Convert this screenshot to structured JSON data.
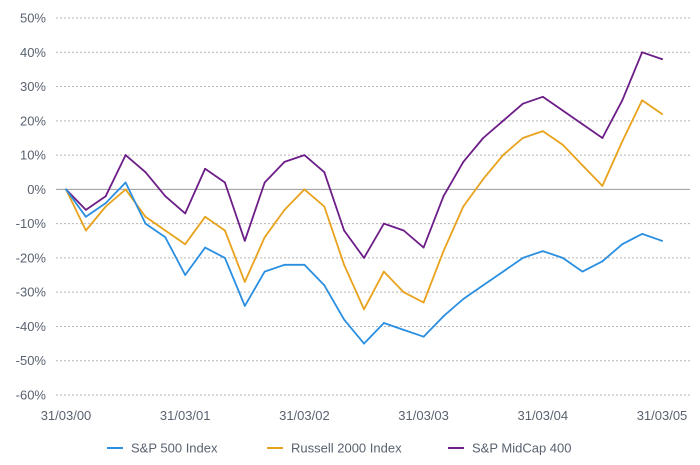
{
  "chart_data": {
    "type": "line",
    "title": "",
    "xlabel": "",
    "ylabel": "",
    "ylim": [
      -60,
      50
    ],
    "y_ticks": [
      "50%",
      "40%",
      "30%",
      "20%",
      "10%",
      "0%",
      "-10%",
      "-20%",
      "-30%",
      "-40%",
      "-50%",
      "-60%"
    ],
    "x_ticks": [
      "31/03/00",
      "31/03/01",
      "31/03/02",
      "31/03/03",
      "31/03/04",
      "31/03/05"
    ],
    "grid": "horizontal dotted",
    "legend_position": "bottom",
    "x": [
      "31/03/00",
      "31/05/00",
      "31/07/00",
      "30/09/00",
      "30/11/00",
      "31/01/01",
      "31/03/01",
      "31/05/01",
      "31/07/01",
      "30/09/01",
      "30/11/01",
      "31/01/02",
      "31/03/02",
      "31/05/02",
      "31/07/02",
      "30/09/02",
      "30/11/02",
      "31/01/03",
      "31/03/03",
      "31/05/03",
      "31/07/03",
      "30/09/03",
      "30/11/03",
      "31/01/04",
      "31/03/04",
      "31/05/04",
      "31/07/04",
      "30/09/04",
      "30/11/04",
      "31/01/05",
      "31/03/05"
    ],
    "series": [
      {
        "name": "S&P 500 Index",
        "color": "#2a8fe0",
        "values": [
          0,
          -8,
          -4,
          2,
          -10,
          -14,
          -25,
          -17,
          -20,
          -34,
          -24,
          -22,
          -22,
          -28,
          -38,
          -45,
          -39,
          -41,
          -43,
          -37,
          -32,
          -28,
          -24,
          -20,
          -18,
          -20,
          -24,
          -21,
          -16,
          -13,
          -15
        ]
      },
      {
        "name": "Russell 2000 Index",
        "color": "#e8a21c",
        "values": [
          0,
          -12,
          -5,
          0,
          -8,
          -12,
          -16,
          -8,
          -12,
          -27,
          -14,
          -6,
          0,
          -5,
          -22,
          -35,
          -24,
          -30,
          -33,
          -18,
          -5,
          3,
          10,
          15,
          17,
          13,
          7,
          1,
          14,
          26,
          22
        ]
      },
      {
        "name": "S&P MidCap 400",
        "color": "#6c1d87",
        "values": [
          0,
          -6,
          -2,
          10,
          5,
          -2,
          -7,
          6,
          2,
          -15,
          2,
          8,
          10,
          5,
          -12,
          -20,
          -10,
          -12,
          -17,
          -2,
          8,
          15,
          20,
          25,
          27,
          23,
          19,
          15,
          26,
          40,
          38
        ]
      }
    ]
  }
}
